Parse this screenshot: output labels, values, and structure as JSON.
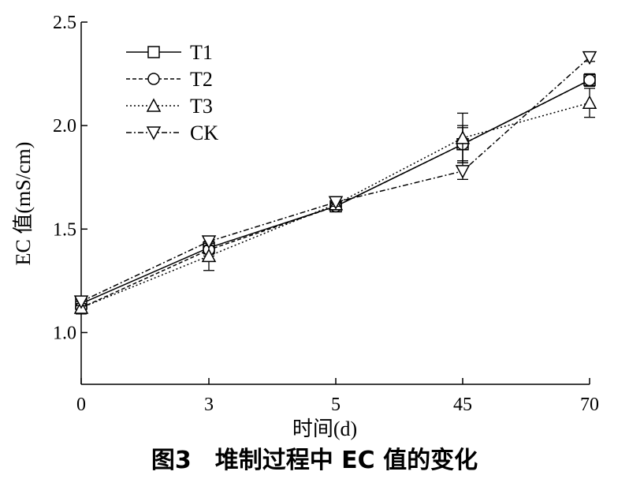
{
  "caption": "图3　堆制过程中 EC 值的变化",
  "chart_data": {
    "type": "line",
    "title": "",
    "xlabel": "时间(d)",
    "ylabel": "EC 值(mS/cm)",
    "categories": [
      "0",
      "3",
      "5",
      "45",
      "70"
    ],
    "yticks": [
      "1.0",
      "1.5",
      "2.0",
      "2.5"
    ],
    "ylim": [
      0.75,
      2.5
    ],
    "legend_position": "top-left",
    "series": [
      {
        "name": "T1",
        "marker": "square",
        "dash": "solid",
        "values": [
          1.14,
          1.41,
          1.61,
          1.91,
          2.22
        ],
        "errors": [
          0.02,
          0.03,
          0.01,
          0.08,
          0.03
        ]
      },
      {
        "name": "T2",
        "marker": "circle",
        "dash": "dashed",
        "values": [
          1.12,
          1.4,
          1.61,
          1.91,
          2.22
        ],
        "errors": [
          0.02,
          0.03,
          0.01,
          0.09,
          0.03
        ]
      },
      {
        "name": "T3",
        "marker": "triangle-up",
        "dash": "dotted",
        "values": [
          1.12,
          1.37,
          1.62,
          1.94,
          2.11
        ],
        "errors": [
          0.03,
          0.07,
          0.01,
          0.12,
          0.07
        ]
      },
      {
        "name": "CK",
        "marker": "triangle-down",
        "dash": "dashdot",
        "values": [
          1.15,
          1.44,
          1.63,
          1.78,
          2.33
        ],
        "errors": [
          0.02,
          0.02,
          0.02,
          0.04,
          0.02
        ]
      }
    ]
  }
}
